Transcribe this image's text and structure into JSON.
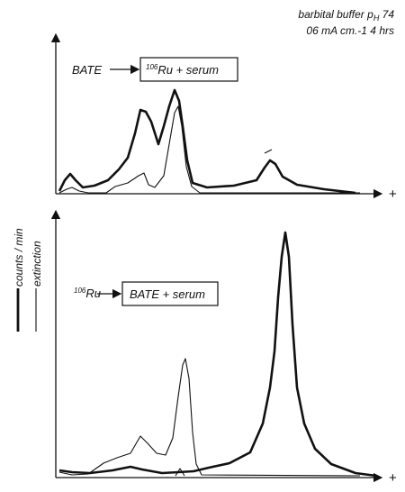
{
  "header": {
    "line1": {
      "text": "barbital buffer p",
      "sub": "H",
      "tail": " 74"
    },
    "line2": "06 mA cm.-1 4 hrs"
  },
  "top_panel": {
    "source": "BATE",
    "box": {
      "sup": "106",
      "text": "Ru + serum"
    },
    "end_mark": "+"
  },
  "bottom_panel": {
    "source": {
      "sup": "106",
      "text": "Ru"
    },
    "box": "BATE + serum",
    "end_mark": "+"
  },
  "legend": {
    "thick": "counts / min",
    "thin": "extinction"
  }
}
